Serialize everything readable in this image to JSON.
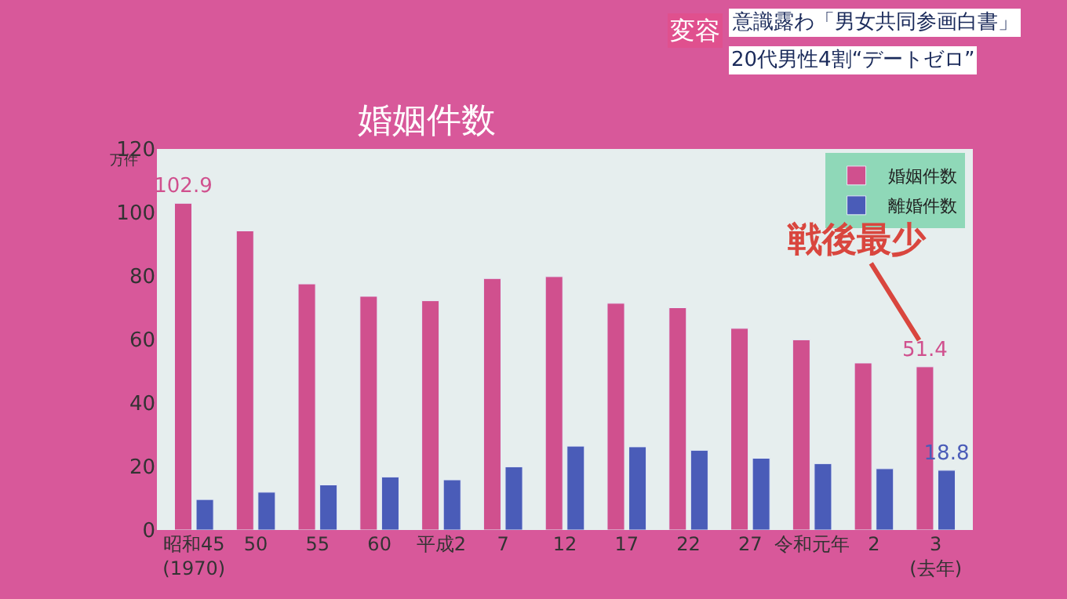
{
  "chart_data": {
    "type": "bar",
    "title": "婚姻件数",
    "ylabel": "万件",
    "categories": [
      "昭和45\n(1970)",
      "50",
      "55",
      "60",
      "平成2",
      "7",
      "12",
      "17",
      "22",
      "27",
      "令和元年",
      "2",
      "3\n(去年)"
    ],
    "series": [
      {
        "name": "婚姻件数",
        "color": "#d0508e",
        "values": [
          102.9,
          94.2,
          77.5,
          73.6,
          72.2,
          79.2,
          79.8,
          71.4,
          70.0,
          63.5,
          59.9,
          52.6,
          51.4
        ],
        "value_labels": [
          "102.9",
          null,
          null,
          null,
          null,
          null,
          null,
          null,
          null,
          null,
          null,
          null,
          "51.4"
        ]
      },
      {
        "name": "離婚件数",
        "color": "#4a5cb8",
        "values": [
          9.6,
          11.9,
          14.2,
          16.7,
          15.8,
          19.9,
          26.4,
          26.2,
          25.1,
          22.6,
          20.9,
          19.3,
          18.8
        ],
        "value_labels": [
          null,
          null,
          null,
          null,
          null,
          null,
          null,
          null,
          null,
          null,
          null,
          null,
          "18.8"
        ]
      }
    ],
    "ylim": [
      0,
      120
    ],
    "yticks": [
      0,
      20,
      40,
      60,
      80,
      100,
      120
    ],
    "grid": false,
    "legend": "top right",
    "annotations": [
      {
        "text": "戦後最少",
        "x": "3\n(去年)",
        "y": 51.4
      },
      "変容",
      "意識露わ「男女共同参画白書」",
      "20代男性4割“デートゼロ”"
    ]
  }
}
